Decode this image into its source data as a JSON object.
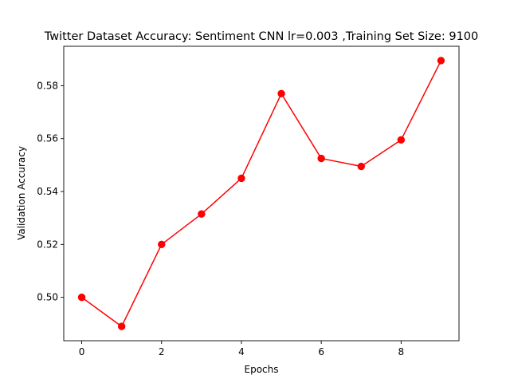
{
  "chart_data": {
    "type": "line",
    "title": "Twitter Dataset Accuracy: Sentiment CNN lr=0.003 ,Training Set Size: 9100",
    "xlabel": "Epochs",
    "ylabel": "Validation Accuracy",
    "xlim": [
      -0.45,
      9.45
    ],
    "ylim": [
      0.4836,
      0.5949
    ],
    "xticks": [
      0,
      2,
      4,
      6,
      8
    ],
    "xtick_labels": [
      "0",
      "2",
      "4",
      "6",
      "8"
    ],
    "yticks": [
      0.5,
      0.52,
      0.54,
      0.56,
      0.58
    ],
    "ytick_labels": [
      "0.50",
      "0.52",
      "0.54",
      "0.56",
      "0.58"
    ],
    "grid": false,
    "series": [
      {
        "color": "#ff0000",
        "marker": "circle",
        "x": [
          0,
          1,
          2,
          3,
          4,
          5,
          6,
          7,
          8,
          9
        ],
        "y": [
          0.5,
          0.489,
          0.52,
          0.5315,
          0.545,
          0.577,
          0.5525,
          0.5495,
          0.5595,
          0.5895
        ]
      }
    ]
  }
}
